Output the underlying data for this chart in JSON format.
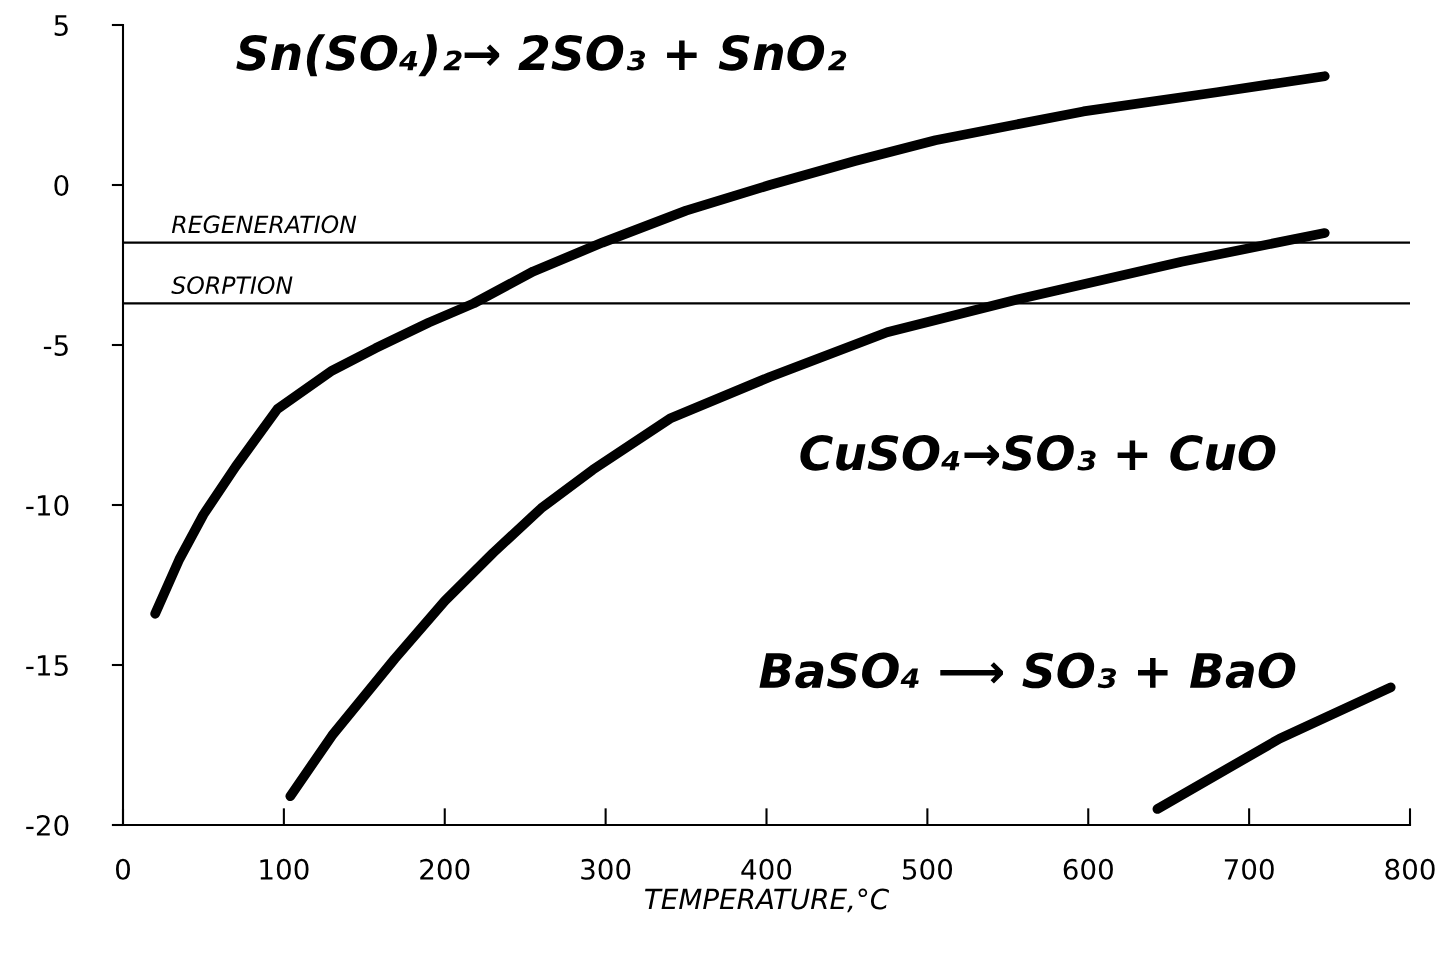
{
  "chart_data": {
    "type": "line",
    "xlabel": "TEMPERATURE,°C",
    "xlim": [
      0,
      800
    ],
    "ylim": [
      -20,
      5
    ],
    "xticks": [
      0,
      100,
      200,
      300,
      400,
      500,
      600,
      700,
      800
    ],
    "yticks": [
      -20,
      -15,
      -10,
      -5,
      0,
      5
    ],
    "grid": false,
    "line_style": "solid",
    "series": [
      {
        "name": "Sn(SO₄)₂→ 2SO₃ + SnO₂",
        "color": "#000000",
        "x": [
          20,
          35,
          50,
          70,
          96,
          130,
          157,
          190,
          218,
          255,
          298,
          350,
          402,
          455,
          505,
          597,
          680,
          747
        ],
        "values": [
          -13.4,
          -11.7,
          -10.3,
          -8.8,
          -7.0,
          -5.8,
          -5.1,
          -4.3,
          -3.7,
          -2.7,
          -1.8,
          -0.8,
          0,
          0.75,
          1.4,
          2.3,
          2.9,
          3.4
        ]
      },
      {
        "name": "CuSO₄→SO₃ + CuO",
        "color": "#000000",
        "x": [
          104,
          130,
          169,
          200,
          230,
          260,
          292,
          340,
          402,
          475,
          554,
          658,
          747
        ],
        "values": [
          -19.1,
          -17.2,
          -14.8,
          -13.0,
          -11.5,
          -10.1,
          -8.9,
          -7.3,
          -6.0,
          -4.6,
          -3.6,
          -2.4,
          -1.5
        ]
      },
      {
        "name": "BaSO₄ ⟶ SO₃ + BaO",
        "color": "#000000",
        "x": [
          643,
          719,
          788
        ],
        "values": [
          -19.5,
          -17.3,
          -15.7
        ]
      }
    ],
    "ref_lines": [
      {
        "axis": "y",
        "value": -1.8,
        "label": "REGENERATION",
        "color": "#000000",
        "line_style": "solid"
      },
      {
        "axis": "y",
        "value": -3.7,
        "label": "SORPTION",
        "color": "#000000",
        "line_style": "solid"
      }
    ]
  }
}
